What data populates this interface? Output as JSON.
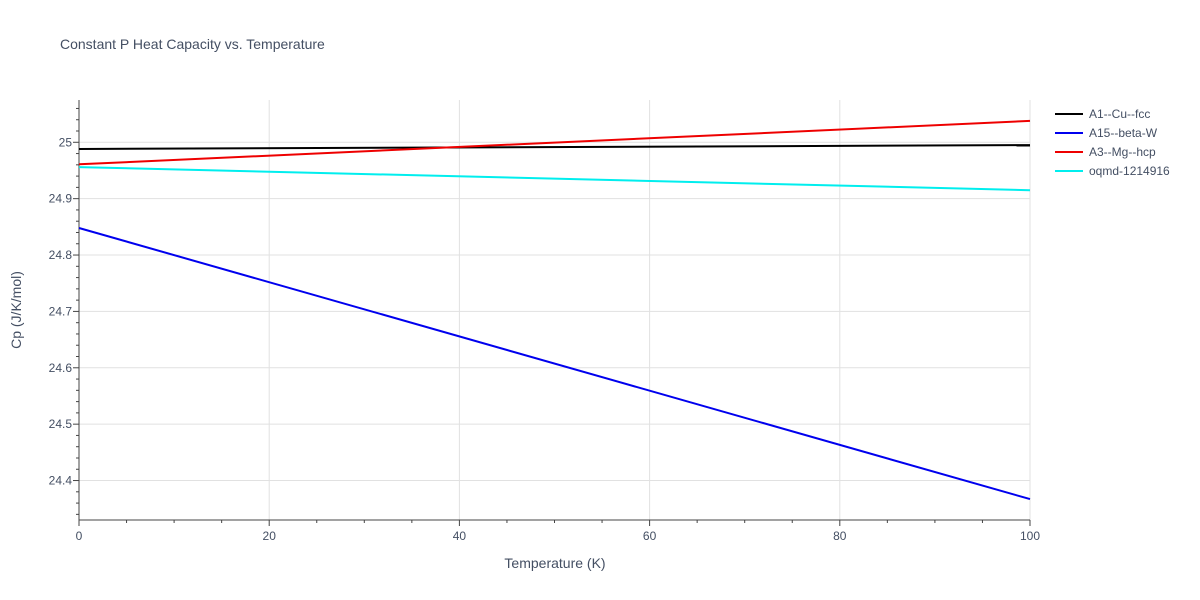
{
  "chart_data": {
    "type": "line",
    "title": "Constant P Heat Capacity vs. Temperature",
    "xlabel": "Temperature (K)",
    "ylabel": "Cp (J/K/mol)",
    "xlim": [
      0,
      100
    ],
    "ylim": [
      24.33,
      25.075
    ],
    "x_ticks": [
      0,
      20,
      40,
      60,
      80,
      100
    ],
    "y_ticks": [
      24.4,
      24.5,
      24.6,
      24.7,
      24.8,
      24.9,
      25
    ],
    "grid": true,
    "legend_position": "top-right",
    "series": [
      {
        "name": "A1--Cu--fcc",
        "color": "#000000",
        "x": [
          0,
          100
        ],
        "values": [
          24.988,
          24.995
        ]
      },
      {
        "name": "A15--beta-W",
        "color": "#0000ee",
        "x": [
          0,
          100
        ],
        "values": [
          24.848,
          24.367
        ]
      },
      {
        "name": "A3--Mg--hcp",
        "color": "#ee0000",
        "x": [
          0,
          100
        ],
        "values": [
          24.961,
          25.038
        ]
      },
      {
        "name": "oqmd-1214916",
        "color": "#00eeee",
        "x": [
          0,
          100
        ],
        "values": [
          24.956,
          24.915
        ]
      }
    ]
  }
}
